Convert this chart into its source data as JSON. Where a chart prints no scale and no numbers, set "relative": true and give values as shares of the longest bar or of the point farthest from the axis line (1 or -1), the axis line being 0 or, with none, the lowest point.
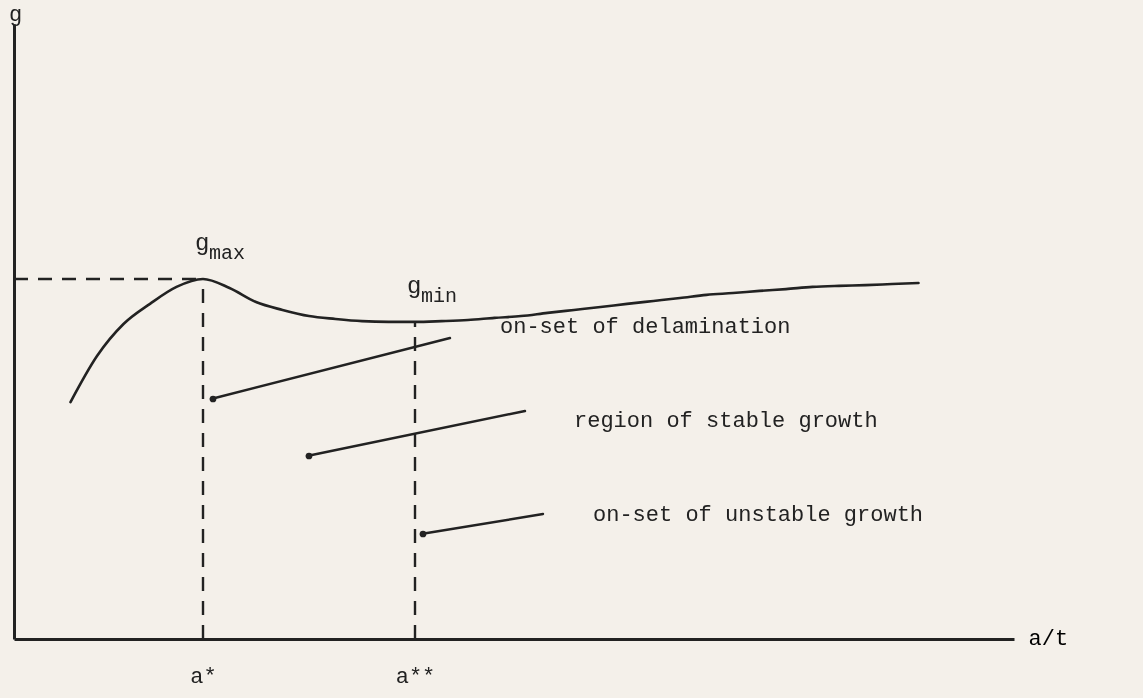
{
  "chart_data": {
    "type": "line",
    "relative": true,
    "xlabel": "a/t",
    "categories": [
      null,
      null,
      null,
      null,
      null,
      "a*",
      null,
      null,
      null,
      null,
      null,
      null,
      null,
      "a**",
      null,
      null,
      null,
      null,
      null,
      null,
      null,
      null,
      null,
      null,
      null,
      null,
      null,
      null,
      null,
      null,
      null,
      null,
      null
    ],
    "series": [
      {
        "color": "#222222",
        "values": [
          0.658,
          0.786,
          0.875,
          0.931,
          0.978,
          1,
          0.975,
          0.936,
          0.914,
          0.897,
          0.889,
          0.883,
          0.881,
          0.881,
          0.883,
          0.886,
          0.892,
          0.897,
          0.906,
          0.914,
          0.922,
          0.931,
          0.939,
          0.947,
          0.956,
          0.961,
          0.967,
          0.972,
          0.978,
          0.981,
          0.983,
          0.986,
          0.989
        ]
      }
    ],
    "ref_lines": [
      {
        "axis": "x",
        "value": "a*",
        "line_style": "dashed",
        "color": "#222222"
      },
      {
        "axis": "x",
        "value": "a**",
        "line_style": "dashed",
        "color": "#222222"
      },
      {
        "axis": "y",
        "value": 1,
        "line_style": "dashed",
        "color": "#222222"
      }
    ],
    "annotations": [
      "g",
      {
        "text": "g$_{max}$",
        "x": "a*",
        "y": 1
      },
      {
        "text": "g$_{min}$",
        "x": "a**",
        "y": 0.881
      },
      "on-set of delamination",
      "region of stable growth",
      "on-set of unstable growth"
    ],
    "grid": false,
    "marker": "none",
    "line_style": "solid"
  }
}
